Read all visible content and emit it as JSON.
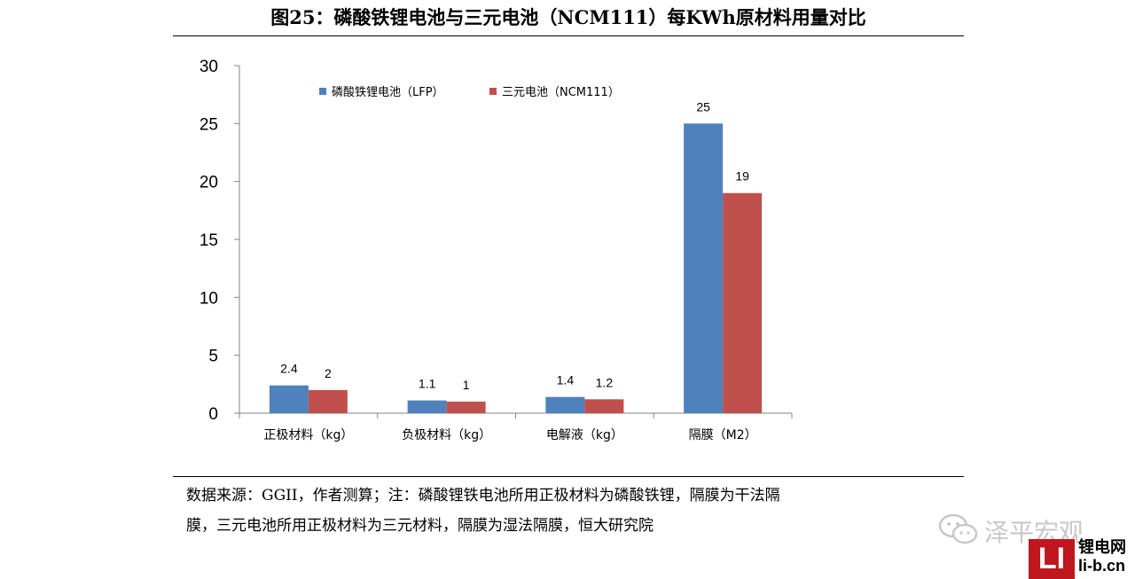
{
  "title": "图25：磷酸铁锂电池与三元电池（NCM111）每KWh原材料用量对比",
  "source_note": {
    "line1": "数据来源：GGII，作者测算；注：磷酸锂铁电池所用正极材料为磷酸铁锂，隔膜为干法隔",
    "line2": "膜，三元电池所用正极材料为三元材料，隔膜为湿法隔膜，恒大研究院"
  },
  "watermark": {
    "text": "泽平宏观",
    "icon": "wechat-icon"
  },
  "logo": {
    "mark": "LI",
    "name": "锂电网",
    "url": "li-b.cn"
  },
  "colors": {
    "lfp": "#4f81bd",
    "ncm": "#c0504d",
    "axis": "#868686"
  },
  "chart_data": {
    "type": "bar",
    "categories": [
      "正极材料（kg）",
      "负极材料（kg）",
      "电解液（kg）",
      "隔膜（M2）"
    ],
    "series": [
      {
        "name": "磷酸铁锂电池（LFP）",
        "values": [
          2.4,
          1.1,
          1.4,
          25
        ],
        "labels": [
          "2.4",
          "1.1",
          "1.4",
          "25"
        ]
      },
      {
        "name": "三元电池（NCM111）",
        "values": [
          2,
          1,
          1.2,
          19
        ],
        "labels": [
          "2",
          "1",
          "1.2",
          "19"
        ]
      }
    ],
    "yticks": [
      "0",
      "5",
      "10",
      "15",
      "20",
      "25",
      "30"
    ],
    "ylim": [
      0,
      30
    ],
    "grid": false,
    "legend": "top-left"
  }
}
